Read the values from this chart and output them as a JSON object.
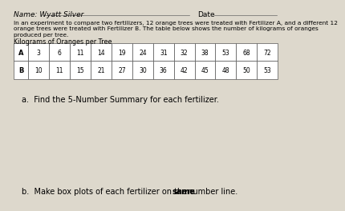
{
  "name_text": "Name: Wyatt Silver",
  "date_text": "Date",
  "intro_line1": "In an experiment to compare two fertilizers, 12 orange trees were treated with Fertilizer A, and a different 12",
  "intro_line2": "orange trees were treated with Fertilizer B. The table below shows the number of kilograms of oranges",
  "intro_line3": "produced per tree.",
  "table_title": "Kilograms of Oranges per Tree",
  "fertilizer_A": [
    3,
    6,
    11,
    14,
    19,
    24,
    31,
    32,
    38,
    53,
    68,
    72
  ],
  "fertilizer_B": [
    10,
    11,
    15,
    21,
    27,
    30,
    36,
    42,
    45,
    48,
    50,
    53
  ],
  "row_labels": [
    "A",
    "B"
  ],
  "part_a_text": "a.  Find the 5-Number Summary for each fertilizer.",
  "part_b_prefix": "b.  Make box plots of each fertilizer on the ",
  "part_b_bold": "same",
  "part_b_suffix": " number line.",
  "bg_color": "#ddd8cc",
  "table_bg": "#ffffff",
  "text_color": "#000000",
  "line_color": "#555555"
}
